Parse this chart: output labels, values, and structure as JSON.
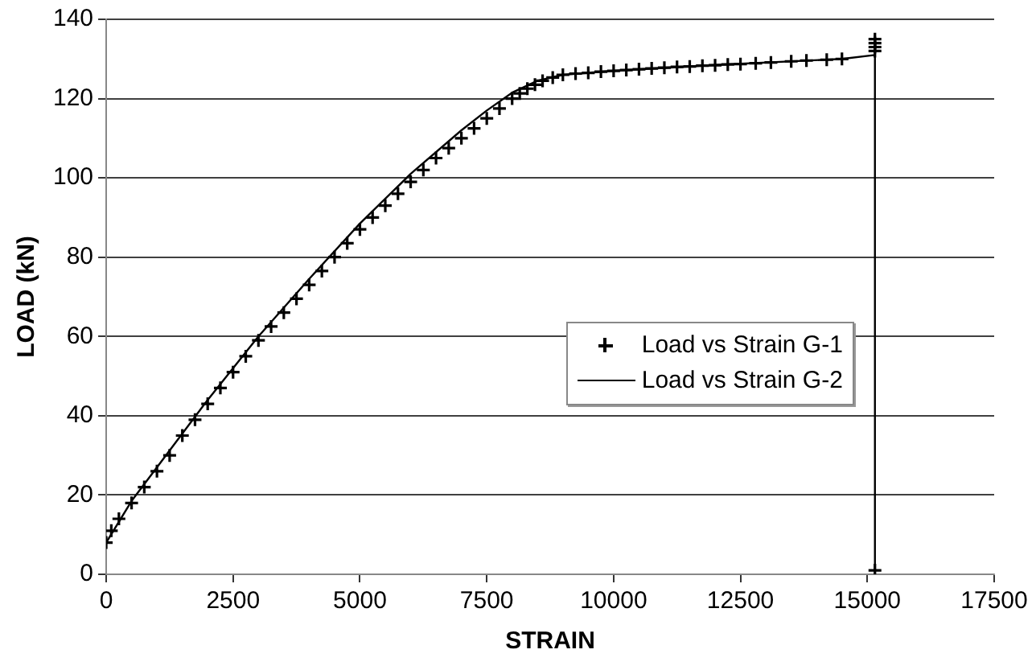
{
  "chart_data": {
    "type": "scatter",
    "xlabel": "STRAIN",
    "ylabel": "LOAD (kN)",
    "xlim": [
      0,
      17500
    ],
    "xticks": [
      0,
      2500,
      5000,
      7500,
      10000,
      12500,
      15000,
      17500
    ],
    "ylim": [
      0,
      140
    ],
    "yticks": [
      0,
      20,
      40,
      60,
      80,
      100,
      120,
      140
    ],
    "grid": "y",
    "legend": "right",
    "series": [
      {
        "name": "Load vs Strain G-1",
        "marker": "cross",
        "color": "#000000",
        "x": [
          0,
          100,
          250,
          500,
          750,
          1000,
          1250,
          1500,
          1750,
          2000,
          2250,
          2500,
          2750,
          3000,
          3250,
          3500,
          3750,
          4000,
          4250,
          4500,
          4750,
          5000,
          5250,
          5500,
          5750,
          6000,
          6250,
          6500,
          6750,
          7000,
          7250,
          7500,
          7750,
          8000,
          8150,
          8300,
          8450,
          8600,
          8800,
          9000,
          9250,
          9500,
          9750,
          10000,
          10250,
          10500,
          10750,
          11000,
          11250,
          11500,
          11750,
          12000,
          12250,
          12500,
          12800,
          13100,
          13500,
          13800,
          14200,
          14500,
          15150,
          15150,
          15150,
          15150,
          15150
        ],
        "values": [
          8,
          11,
          14,
          18,
          22,
          26,
          30,
          35,
          39,
          43,
          47,
          51,
          55,
          59,
          62.5,
          66,
          69.5,
          73,
          76.5,
          80,
          83.5,
          87,
          90,
          93,
          96,
          99,
          102,
          105,
          107.5,
          110,
          112.5,
          115,
          117.5,
          120,
          121.3,
          122.5,
          123.5,
          124.5,
          125.3,
          126,
          126.3,
          126.5,
          126.8,
          127,
          127.2,
          127.4,
          127.6,
          127.8,
          128,
          128.1,
          128.3,
          128.4,
          128.6,
          128.7,
          128.9,
          129.1,
          129.4,
          129.6,
          129.8,
          130,
          132,
          133,
          134,
          135,
          1
        ]
      },
      {
        "name": "Load vs Strain G-2",
        "type": "line",
        "marker": "none",
        "line_style": "solid",
        "color": "#000000",
        "x": [
          0,
          500,
          1000,
          2000,
          3000,
          4000,
          5000,
          6000,
          7000,
          7500,
          8000,
          8500,
          9000,
          10000,
          12000,
          14500,
          15150,
          15150,
          15150
        ],
        "values": [
          8,
          18.5,
          27,
          44,
          60,
          74.5,
          88.5,
          101,
          112,
          117,
          121.5,
          124.5,
          126,
          127,
          128.5,
          130,
          131,
          136,
          1
        ]
      }
    ]
  }
}
